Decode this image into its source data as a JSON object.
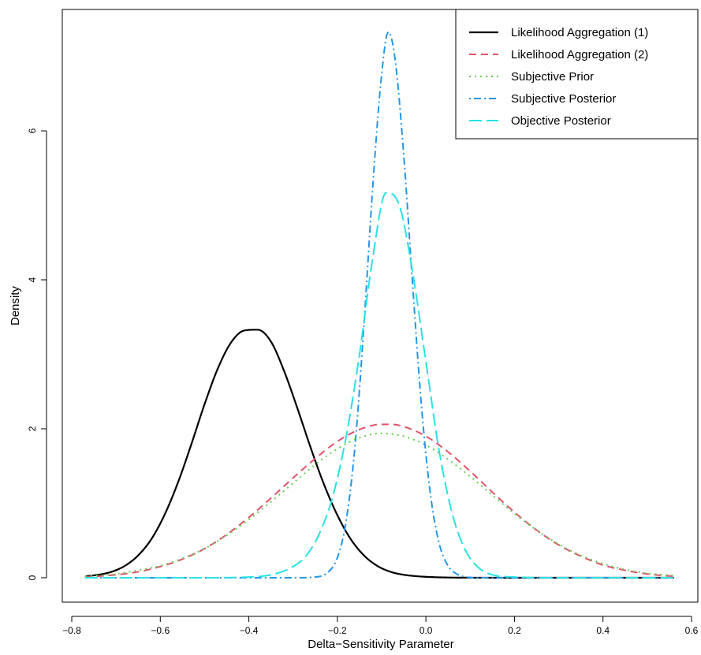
{
  "chart_data": {
    "type": "line",
    "title": "",
    "xlabel": "Delta−Sensitivity Parameter",
    "ylabel": "Density",
    "xlim": [
      -0.8,
      0.6
    ],
    "ylim": [
      0,
      7.3
    ],
    "xticks": [
      -0.8,
      -0.6,
      -0.4,
      -0.2,
      0.0,
      0.2,
      0.4,
      0.6
    ],
    "xtick_labels": [
      "−0.8",
      "−0.6",
      "−0.4",
      "−0.2",
      "0.0",
      "0.2",
      "0.4",
      "0.6"
    ],
    "yticks": [
      0,
      2,
      4,
      6
    ],
    "ytick_labels": [
      "0",
      "2",
      "4",
      "6"
    ],
    "grid": false,
    "legend_position": "top-right",
    "x_range": [
      -0.77,
      0.56
    ],
    "series": [
      {
        "name": "Likelihood Aggregation (1)",
        "color": "#000000",
        "dash": "solid",
        "width": 2.2,
        "x": [
          -0.77,
          -0.74,
          -0.71,
          -0.68,
          -0.65,
          -0.62,
          -0.59,
          -0.56,
          -0.53,
          -0.5,
          -0.47,
          -0.44,
          -0.41,
          -0.38,
          -0.35,
          -0.32,
          -0.29,
          -0.26,
          -0.23,
          -0.2,
          -0.17,
          -0.14,
          -0.11,
          -0.08,
          -0.05,
          -0.02,
          0.01,
          0.05,
          0.1,
          0.2,
          0.3,
          0.4,
          0.56
        ],
        "y": [
          0.02,
          0.04,
          0.08,
          0.16,
          0.3,
          0.52,
          0.85,
          1.28,
          1.79,
          2.33,
          2.81,
          3.16,
          3.32,
          3.33,
          3.17,
          2.77,
          2.27,
          1.74,
          1.25,
          0.84,
          0.52,
          0.3,
          0.16,
          0.08,
          0.04,
          0.02,
          0.01,
          0.003,
          0.001,
          0.0,
          0.0,
          0.0,
          0.0
        ]
      },
      {
        "name": "Likelihood Aggregation (2)",
        "color": "#df536b",
        "dash": "dashed",
        "width": 2.0,
        "x": [
          -0.77,
          -0.7,
          -0.65,
          -0.6,
          -0.55,
          -0.5,
          -0.45,
          -0.4,
          -0.35,
          -0.3,
          -0.25,
          -0.2,
          -0.15,
          -0.1,
          -0.08,
          -0.05,
          0.0,
          0.05,
          0.1,
          0.15,
          0.2,
          0.25,
          0.3,
          0.35,
          0.4,
          0.45,
          0.5,
          0.56
        ],
        "y": [
          0.01,
          0.04,
          0.08,
          0.15,
          0.25,
          0.39,
          0.58,
          0.81,
          1.07,
          1.34,
          1.6,
          1.83,
          1.99,
          2.06,
          2.06,
          2.03,
          1.9,
          1.69,
          1.43,
          1.15,
          0.88,
          0.64,
          0.44,
          0.29,
          0.17,
          0.1,
          0.05,
          0.02
        ]
      },
      {
        "name": "Subjective Prior",
        "color": "#61d04f",
        "dash": "dotted",
        "width": 2.0,
        "x": [
          -0.77,
          -0.7,
          -0.65,
          -0.6,
          -0.55,
          -0.5,
          -0.45,
          -0.4,
          -0.35,
          -0.3,
          -0.25,
          -0.2,
          -0.15,
          -0.1,
          -0.08,
          -0.05,
          0.0,
          0.05,
          0.1,
          0.15,
          0.2,
          0.25,
          0.3,
          0.35,
          0.4,
          0.45,
          0.5,
          0.56
        ],
        "y": [
          0.02,
          0.05,
          0.1,
          0.16,
          0.26,
          0.39,
          0.57,
          0.78,
          1.02,
          1.27,
          1.52,
          1.73,
          1.88,
          1.94,
          1.93,
          1.9,
          1.78,
          1.59,
          1.36,
          1.11,
          0.86,
          0.64,
          0.45,
          0.3,
          0.19,
          0.11,
          0.06,
          0.03
        ]
      },
      {
        "name": "Subjective Posterior",
        "color": "#2297e6",
        "dash": "dashdot",
        "width": 2.0,
        "x": [
          -0.77,
          -0.4,
          -0.3,
          -0.25,
          -0.22,
          -0.2,
          -0.18,
          -0.16,
          -0.14,
          -0.12,
          -0.1,
          -0.085,
          -0.07,
          -0.05,
          -0.03,
          -0.01,
          0.01,
          0.03,
          0.05,
          0.07,
          0.09,
          0.12,
          0.15,
          0.56
        ],
        "y": [
          0.0,
          0.0,
          0.0,
          0.01,
          0.08,
          0.27,
          0.77,
          1.78,
          3.39,
          5.26,
          6.76,
          7.33,
          6.98,
          5.67,
          3.93,
          2.3,
          1.13,
          0.46,
          0.16,
          0.05,
          0.01,
          0.0,
          0.0,
          0.0
        ]
      },
      {
        "name": "Objective Posterior",
        "color": "#28e2e5",
        "dash": "longdash",
        "width": 2.0,
        "x": [
          -0.77,
          -0.5,
          -0.4,
          -0.35,
          -0.3,
          -0.27,
          -0.24,
          -0.21,
          -0.18,
          -0.15,
          -0.12,
          -0.09,
          -0.06,
          -0.03,
          0.0,
          0.03,
          0.06,
          0.09,
          0.12,
          0.15,
          0.2,
          0.3,
          0.56
        ],
        "y": [
          0.0,
          0.0,
          0.01,
          0.04,
          0.15,
          0.3,
          0.6,
          1.1,
          1.9,
          3.0,
          4.3,
          5.17,
          5.0,
          4.1,
          2.9,
          1.7,
          0.85,
          0.36,
          0.13,
          0.04,
          0.01,
          0.0,
          0.0
        ]
      }
    ]
  }
}
